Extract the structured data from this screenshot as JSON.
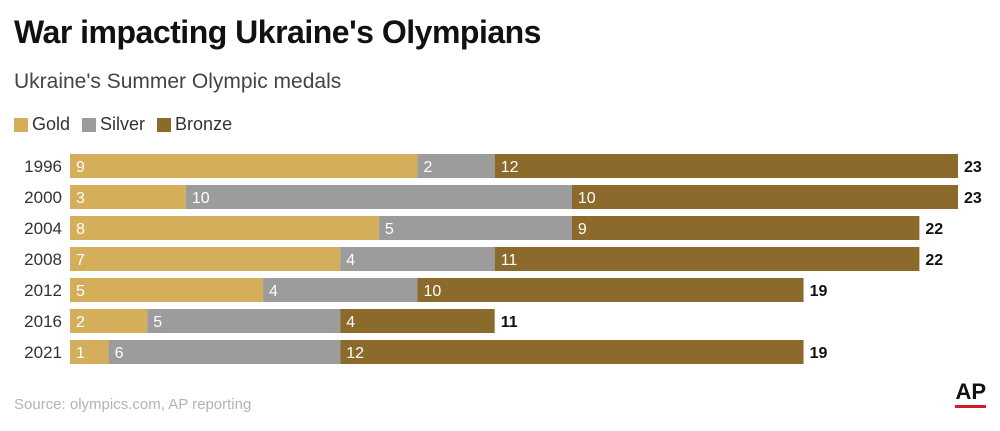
{
  "title": "War impacting Ukraine's Olympians",
  "subtitle": "Ukraine's Summer Olympic medals",
  "legend": [
    {
      "label": "Gold",
      "color": "#d4ae5b"
    },
    {
      "label": "Silver",
      "color": "#9c9c9c"
    },
    {
      "label": "Bronze",
      "color": "#8b6a2b"
    }
  ],
  "source": "Source: olympics.com, AP reporting",
  "logo": "AP",
  "chart_data": {
    "type": "bar",
    "orientation": "horizontal",
    "stacked": true,
    "categories": [
      "1996",
      "2000",
      "2004",
      "2008",
      "2012",
      "2016",
      "2021"
    ],
    "series": [
      {
        "name": "Gold",
        "color": "#d4ae5b",
        "values": [
          9,
          3,
          8,
          7,
          5,
          2,
          1
        ]
      },
      {
        "name": "Silver",
        "color": "#9c9c9c",
        "values": [
          2,
          10,
          5,
          4,
          4,
          5,
          6
        ]
      },
      {
        "name": "Bronze",
        "color": "#8b6a2b",
        "values": [
          12,
          10,
          9,
          11,
          10,
          4,
          12
        ]
      }
    ],
    "totals": [
      23,
      23,
      22,
      22,
      19,
      11,
      19
    ],
    "title": "Ukraine's Summer Olympic medals",
    "xlim": [
      0,
      23
    ],
    "grid": false,
    "legend_position": "top-left"
  }
}
